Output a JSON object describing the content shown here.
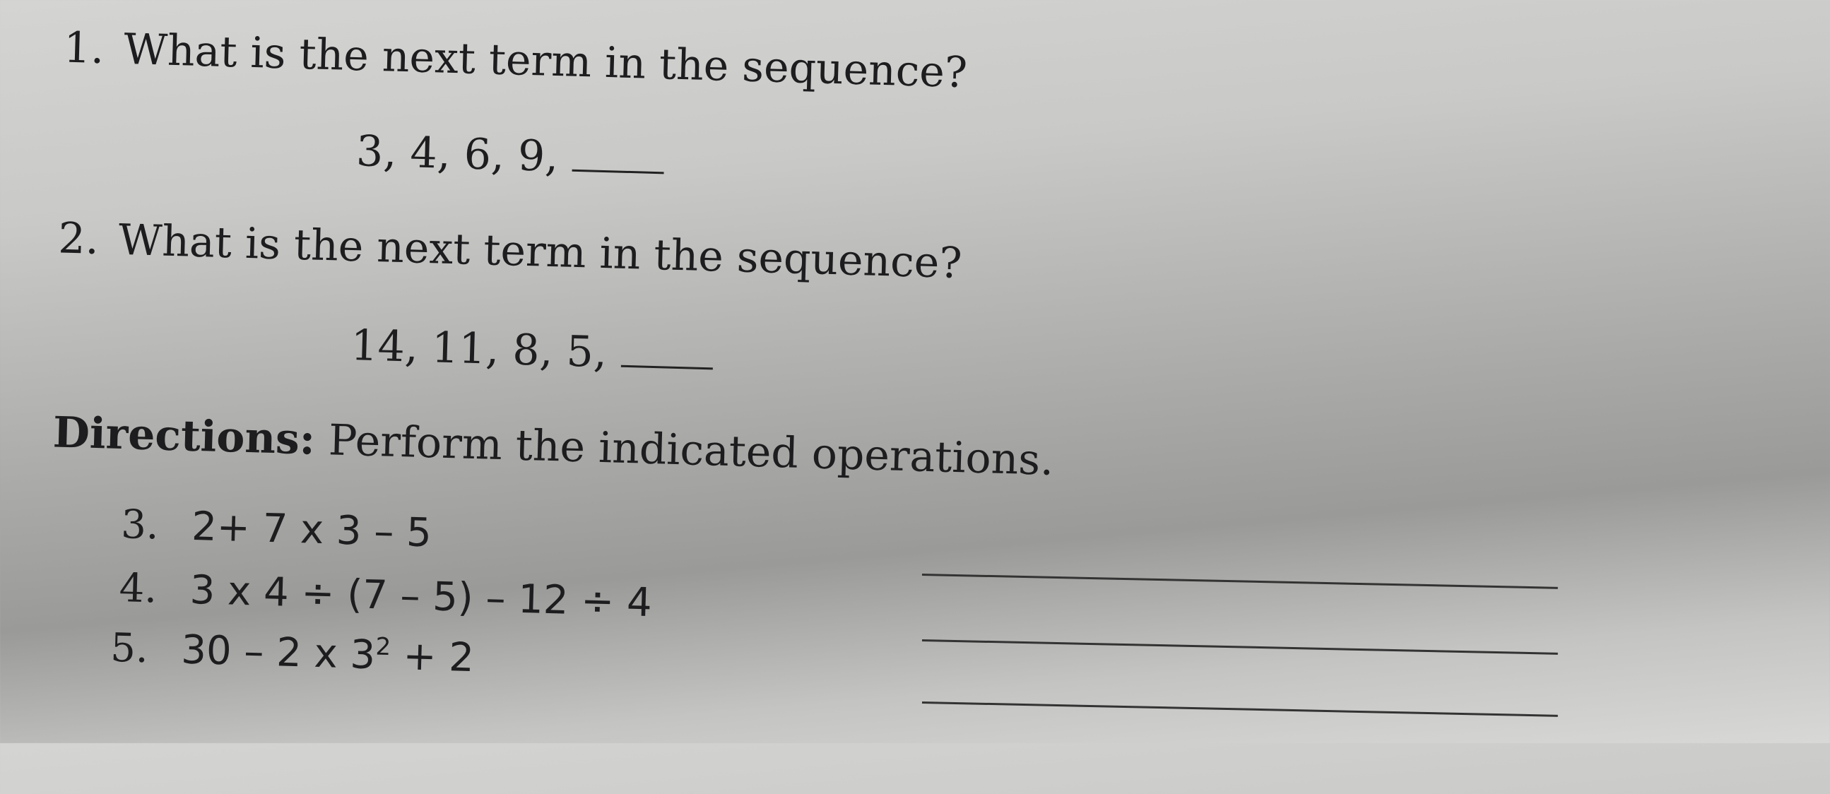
{
  "questions": [
    {
      "number": "1.",
      "text": "What is the next term in the sequence?",
      "sequence": "3, 4, 6, 9,"
    },
    {
      "number": "2.",
      "text": "What is the next term in the sequence?",
      "sequence": "14, 11, 8, 5,"
    }
  ],
  "directions": {
    "label": "Directions:",
    "text": "Perform the indicated operations."
  },
  "exercises": [
    {
      "number": "3.",
      "expression": "2+ 7 x 3 – 5"
    },
    {
      "number": "4.",
      "expression": "3 x 4 ÷ (7 – 5) – 12 ÷ 4"
    },
    {
      "number": "5.",
      "expression": "30 – 2 x 3",
      "exponent": "2",
      "tail": "+ 2"
    }
  ]
}
